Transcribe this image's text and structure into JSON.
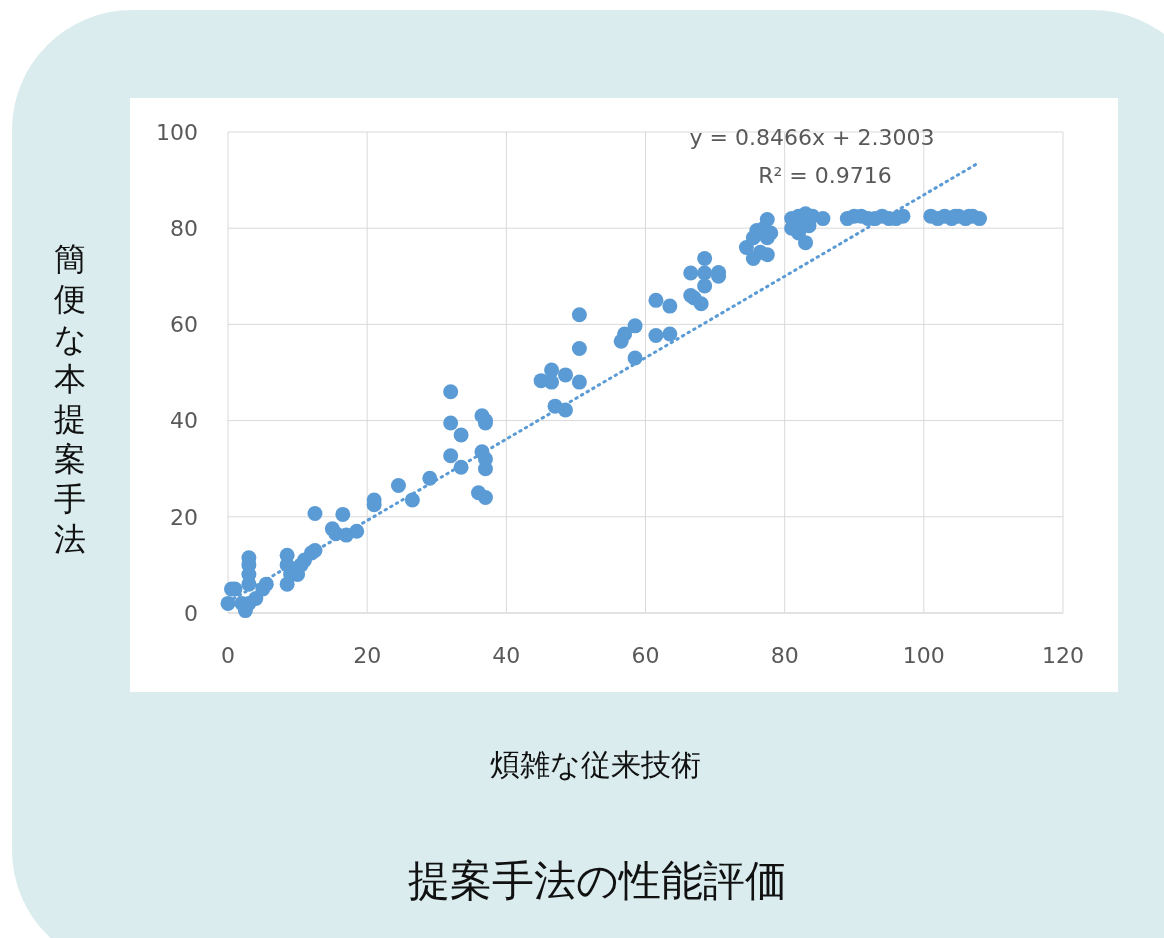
{
  "chart_data": {
    "type": "scatter",
    "title": "提案手法の性能評価",
    "xlabel": "煩雑な従来技術",
    "ylabel": "簡便な本提案手法",
    "annotations": [
      "y = 0.8466x + 2.3003",
      "R² = 0.9716"
    ],
    "xlim": [
      0,
      120
    ],
    "ylim": [
      0,
      100
    ],
    "xticks": [
      0,
      20,
      40,
      60,
      80,
      100,
      120
    ],
    "yticks": [
      0,
      20,
      40,
      60,
      80,
      100
    ],
    "grid": true,
    "series": [
      {
        "color": "#5b9bd5",
        "marker": "circle",
        "x": [
          0,
          0.5,
          2,
          2.5,
          3,
          3,
          3,
          3,
          4,
          5,
          5.5,
          1,
          3,
          8.5,
          8.5,
          9,
          8.5,
          10,
          10.5,
          11,
          12,
          12.5,
          12.5,
          15,
          15.5,
          16.5,
          17,
          18.5,
          21,
          21,
          24.5,
          26.5,
          29,
          32,
          32,
          32,
          33.5,
          33.5,
          36,
          36.5,
          36.5,
          37,
          37,
          37,
          37,
          37,
          45,
          46.5,
          46.5,
          47,
          48.5,
          48.5,
          50.5,
          50.5,
          50.5,
          56.5,
          57,
          58.5,
          58.5,
          61.5,
          61.5,
          63.5,
          63.5,
          66.5,
          66.5,
          67,
          68,
          68.5,
          68.5,
          68.5,
          70.5,
          70.5,
          74.5,
          75.5,
          75.5,
          76,
          76.5,
          77,
          77.5,
          77.5,
          77.5,
          78,
          81,
          81,
          82,
          82.5,
          83,
          83,
          84,
          85.5,
          82,
          83.5,
          89,
          90,
          91,
          92,
          93,
          94,
          95,
          96,
          97,
          101,
          102,
          103,
          104,
          105,
          106,
          107,
          108,
          104.5,
          106.5
        ],
        "values": [
          2,
          5,
          2,
          0.5,
          8,
          10,
          11.5,
          6,
          3,
          5,
          6,
          5,
          2,
          12,
          10,
          8,
          6,
          8,
          10,
          11,
          12.5,
          13,
          20.7,
          17.5,
          16.5,
          20.5,
          16.2,
          17,
          22.5,
          23.5,
          26.5,
          23.5,
          28,
          46,
          39.5,
          32.7,
          37,
          30.3,
          25,
          41,
          33.5,
          39.5,
          32,
          30,
          24,
          40,
          48.3,
          48,
          50.5,
          43,
          49.5,
          42.2,
          62,
          55,
          48,
          56.5,
          58,
          59.7,
          53,
          65,
          57.7,
          63.8,
          58,
          70.7,
          66,
          65.5,
          64.3,
          73.7,
          70.7,
          68,
          70,
          70.8,
          76,
          78,
          73.7,
          79.5,
          75,
          80,
          81.8,
          74.5,
          78,
          79,
          82,
          80,
          79,
          81,
          83,
          77,
          82.5,
          82,
          82.5,
          80.5,
          82,
          82.5,
          82.5,
          82,
          82,
          82.5,
          82,
          82,
          82.5,
          82.5,
          82,
          82.5,
          82,
          82.5,
          82,
          82.5,
          82,
          82.5,
          82.5
        ]
      },
      {
        "type": "line",
        "color": "#5b9bd5",
        "line_style": "dotted",
        "x": [
          0,
          108
        ],
        "values": [
          2.3,
          93.7
        ]
      }
    ]
  }
}
